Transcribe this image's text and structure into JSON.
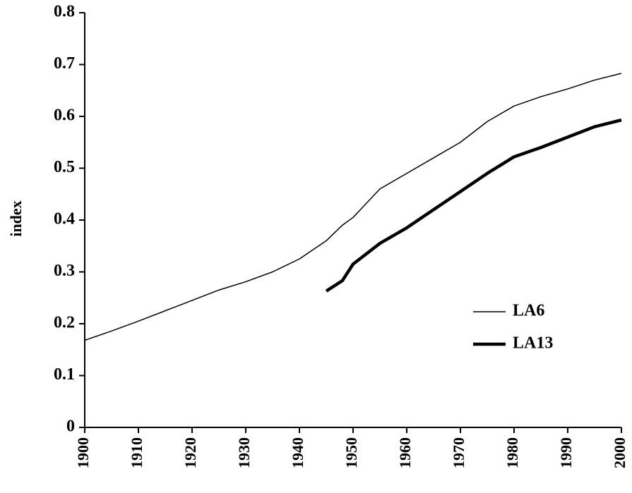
{
  "chart_data": {
    "type": "line",
    "y_label": "index",
    "x": [
      1900,
      1905,
      1910,
      1915,
      1920,
      1925,
      1930,
      1935,
      1940,
      1945,
      1948,
      1950,
      1955,
      1960,
      1965,
      1970,
      1975,
      1980,
      1985,
      1990,
      1995,
      2000
    ],
    "series": [
      {
        "name": "LA6",
        "color": "#000000",
        "line_width": 1.5,
        "values": [
          0.168,
          0.186,
          0.205,
          0.225,
          0.245,
          0.265,
          0.281,
          0.3,
          0.325,
          0.36,
          0.39,
          0.405,
          0.46,
          0.49,
          0.52,
          0.55,
          0.59,
          0.62,
          0.638,
          0.653,
          0.67,
          0.683
        ]
      },
      {
        "name": "LA13",
        "color": "#000000",
        "line_width": 4.5,
        "values": [
          null,
          null,
          null,
          null,
          null,
          null,
          null,
          null,
          null,
          0.263,
          0.283,
          0.315,
          0.355,
          0.385,
          0.42,
          0.455,
          0.49,
          0.522,
          0.54,
          0.56,
          0.58,
          0.593
        ]
      }
    ],
    "xlim": [
      1900,
      2000
    ],
    "xticks": [
      1900,
      1910,
      1920,
      1930,
      1940,
      1950,
      1960,
      1970,
      1980,
      1990,
      2000
    ],
    "ylim": [
      0,
      0.8
    ],
    "yticks": [
      0,
      0.1,
      0.2,
      0.3,
      0.4,
      0.5,
      0.6,
      0.7,
      0.8
    ],
    "legend": "lower-right"
  }
}
